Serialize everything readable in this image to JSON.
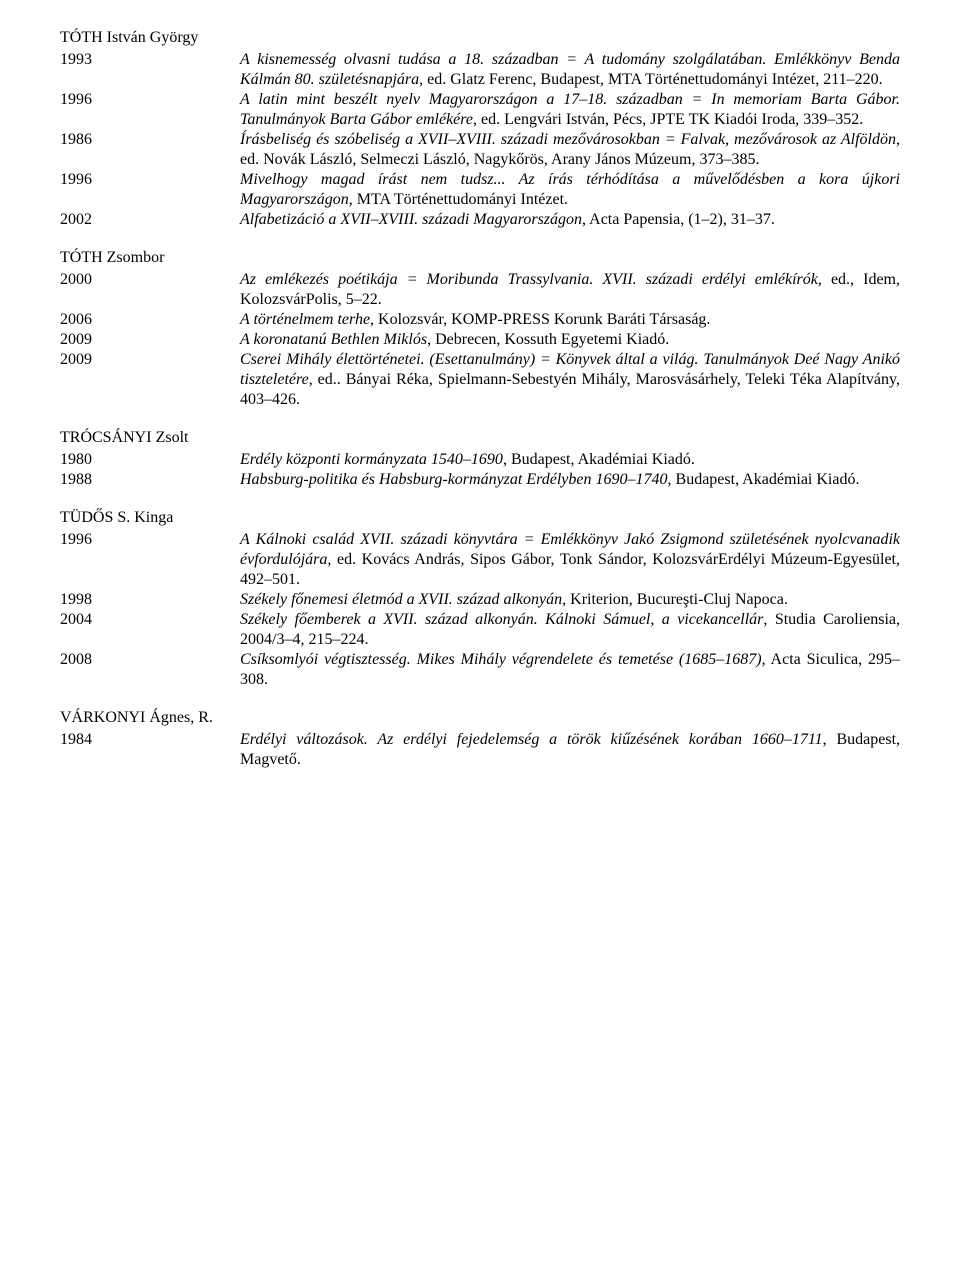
{
  "sections": [
    {
      "author": "TÓTH István György",
      "entries": [
        {
          "year": "1993",
          "html": "<span class=\"italic\">A kisnemesség olvasni tudása a 18. században = A tudomány szolgálatában. Emlékkönyv Benda Kálmán 80. születésnapjára</span>, ed. Glatz Ferenc, Budapest, MTA Történettudományi Intézet, 211–220."
        },
        {
          "year": "1996",
          "html": "<span class=\"italic\">A latin mint beszélt nyelv Magyarországon a 17–18. században = In memoriam Barta Gábor. Tanulmányok Barta Gábor emlékére</span>, ed. Lengvári István, Pécs, JPTE TK Kiadói Iroda, 339–352."
        },
        {
          "year": "1986",
          "html": "<span class=\"italic\">Írásbeliség és szóbeliség a XVII–XVIII. századi mezővárosokban = Falvak, mezővárosok az Alföldön</span>, ed. Novák László, Selmeczi László, Nagykőrös, Arany János Múzeum, 373–385."
        },
        {
          "year": "1996",
          "html": "<span class=\"italic\">Mivelhogy magad írást nem tudsz... Az írás térhódítása a művelődésben a kora újkori Magyarországon</span>, MTA Történettudományi Intézet."
        },
        {
          "year": "2002",
          "html": "<span class=\"italic\">Alfabetizáció a XVII–XVIII. századi Magyarországon</span>, Acta Papensia, (1–2), 31–37."
        }
      ]
    },
    {
      "author": "TÓTH Zsombor",
      "entries": [
        {
          "year": "2000",
          "html": "<span class=\"italic\">Az emlékezés poétikája = Moribunda Trassylvania. XVII. századi erdélyi emlékírók</span>, ed., Idem, KolozsvárPolis, 5–22."
        },
        {
          "year": "2006",
          "html": "<span class=\"italic\">A történelmem terhe</span>, Kolozsvár, KOMP-PRESS Korunk Baráti Társaság."
        },
        {
          "year": "2009",
          "html": "<span class=\"italic\">A koronatanú Bethlen Miklós</span>, Debrecen, Kossuth Egyetemi Kiadó."
        },
        {
          "year": "2009",
          "html": "<span class=\"italic\">Cserei Mihály élettörténetei. (Esettanulmány) = Könyvek által a világ. Tanulmányok Deé Nagy Anikó tiszteletére</span>, ed.. Bányai Réka, Spielmann-Sebestyén Mihály, Marosvásárhely, Teleki Téka Alapítvány, 403–426."
        }
      ]
    },
    {
      "author": "TRÓCSÁNYI Zsolt",
      "entries": [
        {
          "year": "1980",
          "html": "<span class=\"italic\">Erdély központi kormányzata 1540–1690</span>, Budapest, Akadémiai Kiadó."
        },
        {
          "year": "1988",
          "html": "<span class=\"italic\">Habsburg-politika és Habsburg-kormányzat Erdélyben 1690–1740</span>, Budapest, Akadémiai Kiadó."
        }
      ]
    },
    {
      "author": "TÜDŐS S. Kinga",
      "entries": [
        {
          "year": "1996",
          "html": "<span class=\"italic\">A Kálnoki család XVII. századi könyvtára = Emlékkönyv Jakó Zsigmond születésének nyolcvanadik évfordulójára,</span> ed. Kovács András, Sipos Gábor, Tonk Sándor, KolozsvárErdélyi Múzeum-Egyesület, 492–501."
        },
        {
          "year": "1998",
          "html": "<span class=\"italic\">Székely főnemesi életmód a XVII. század alkonyán,</span> Kriterion, Bucureşti-Cluj Napoca."
        },
        {
          "year": "2004",
          "html": "<span class=\"italic\">Székely főemberek a XVII. század alkonyán. Kálnoki Sámuel, a vicekancellár</span>, Studia Caroliensia, 2004/3–4, 215–224."
        },
        {
          "year": "2008",
          "html": "<span class=\"italic\">Csíksomlyói végtisztesség. Mikes Mihály végrendelete és temetése (1685–1687)</span>, Acta Siculica, 295–308."
        }
      ]
    },
    {
      "author": "VÁRKONYI Ágnes, R.",
      "entries": [
        {
          "year": "1984",
          "html": "<span class=\"italic\">Erdélyi változások. Az erdélyi fejedelemség a török kiűzésének korában 1660–1711</span>, Budapest, Magvető."
        }
      ]
    }
  ]
}
